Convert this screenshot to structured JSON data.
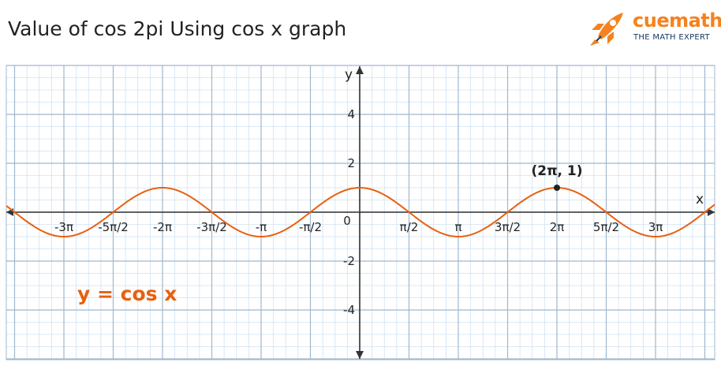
{
  "header": {
    "title": "Value of cos 2pi Using cos x graph",
    "brand": {
      "name": "cuemath",
      "tagline": "THE MATH EXPERT",
      "icon": "rocket-icon",
      "color": "#f5821f",
      "tagline_color": "#1c3764"
    }
  },
  "chart_data": {
    "type": "line",
    "function": "cos x",
    "equation_label": "y = cos x",
    "xlabel": "x",
    "ylabel": "y",
    "xlim": [
      -3.6,
      3.6
    ],
    "xlim_unit": "multiples of pi",
    "ylim": [
      -6,
      6
    ],
    "grid": true,
    "x_ticks": [
      {
        "value": -3,
        "label": "-3π"
      },
      {
        "value": -2.5,
        "label": "-5π/2"
      },
      {
        "value": -2,
        "label": "-2π"
      },
      {
        "value": -1.5,
        "label": "-3π/2"
      },
      {
        "value": -1,
        "label": "-π"
      },
      {
        "value": -0.5,
        "label": "-π/2"
      },
      {
        "value": 0.5,
        "label": "π/2"
      },
      {
        "value": 1,
        "label": "π"
      },
      {
        "value": 1.5,
        "label": "3π/2"
      },
      {
        "value": 2,
        "label": "2π"
      },
      {
        "value": 2.5,
        "label": "5π/2"
      },
      {
        "value": 3,
        "label": "3π"
      }
    ],
    "origin_label": "0",
    "y_ticks": [
      {
        "value": 4,
        "label": "4"
      },
      {
        "value": 2,
        "label": "2"
      },
      {
        "value": -2,
        "label": "-2"
      },
      {
        "value": -4,
        "label": "-4"
      }
    ],
    "highlight_point": {
      "x": 2,
      "y": 1,
      "label": "(2π, 1)"
    },
    "colors": {
      "curve": "#e8600f",
      "grid_minor": "#cfe2f3",
      "grid_major": "#9fb8cf",
      "axis": "#333333"
    }
  }
}
